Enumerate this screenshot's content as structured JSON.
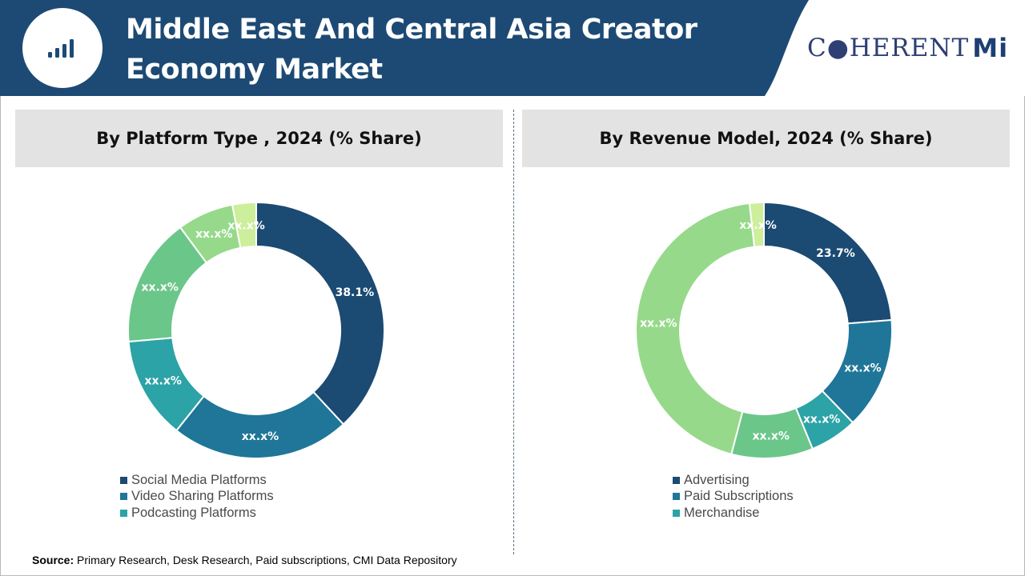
{
  "header": {
    "title_line1": "Middle East And Central Asia Creator",
    "title_line2": "Economy Market",
    "brand_text": "C●HERENT",
    "brand_suffix": "Mi",
    "colors": {
      "band": "#1d4a74",
      "accent": "#2c5f8e"
    },
    "icon": "bar-chart-icon"
  },
  "footer": {
    "source_label": "Source:",
    "source_text": "Primary Research, Desk Research, Paid subscriptions, CMI Data Repository"
  },
  "chart_data": [
    {
      "type": "pie",
      "donut": true,
      "title": "By Platform Type , 2024 (% Share)",
      "slices": [
        {
          "label": "38.1%",
          "value": 38.1,
          "color": "#1b4a72"
        },
        {
          "label": "xx.x%",
          "value": 22.6,
          "color": "#1f7698"
        },
        {
          "label": "xx.x%",
          "value": 12.9,
          "color": "#2ca3a6"
        },
        {
          "label": "xx.x%",
          "value": 16.3,
          "color": "#6bc68a"
        },
        {
          "label": "xx.x%",
          "value": 7.1,
          "color": "#96d98a"
        },
        {
          "label": "xx.x%",
          "value": 3.0,
          "color": "#cdee9a"
        }
      ],
      "legend": [
        "Social Media Platforms",
        "Video Sharing Platforms",
        "Podcasting Platforms"
      ],
      "legend_colors": [
        "#1b4a72",
        "#1f7698",
        "#2ca3a6"
      ],
      "legend_position": "bottom-left"
    },
    {
      "type": "pie",
      "donut": true,
      "title": "By Revenue Model, 2024 (% Share)",
      "slices": [
        {
          "label": "23.7%",
          "value": 23.7,
          "color": "#1b4a72"
        },
        {
          "label": "xx.x%",
          "value": 14.1,
          "color": "#1f7698"
        },
        {
          "label": "xx.x%",
          "value": 6.0,
          "color": "#2ca3a6"
        },
        {
          "label": "xx.x%",
          "value": 10.3,
          "color": "#6bc68a"
        },
        {
          "label": "xx.x%",
          "value": 44.1,
          "color": "#96d98a"
        },
        {
          "label": "xx.x%",
          "value": 1.8,
          "color": "#cdee9a"
        }
      ],
      "legend": [
        "Advertising",
        "Paid Subscriptions",
        "Merchandise"
      ],
      "legend_colors": [
        "#1b4a72",
        "#1f7698",
        "#2ca3a6"
      ],
      "legend_position": "bottom-left"
    }
  ]
}
